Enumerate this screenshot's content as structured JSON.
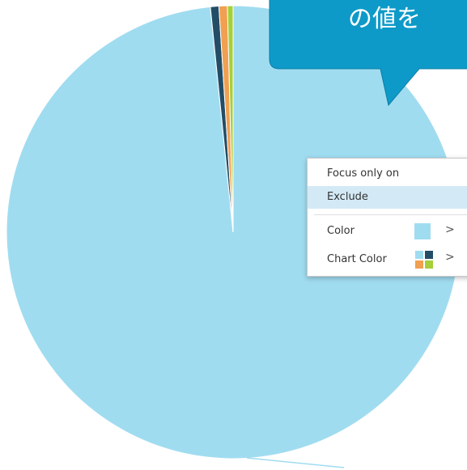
{
  "chart_data": {
    "type": "pie",
    "categories": [
      null,
      null,
      null,
      null
    ],
    "values": [
      98.4,
      0.6,
      0.6,
      0.4
    ],
    "colors": [
      "#a0dcf0",
      "#234d66",
      "#f0a050",
      "#a6cf38"
    ]
  },
  "callout": {
    "text": "の値を"
  },
  "menu": {
    "items": [
      "Focus only on",
      "Exclude",
      "Color",
      "Chart Color"
    ]
  }
}
